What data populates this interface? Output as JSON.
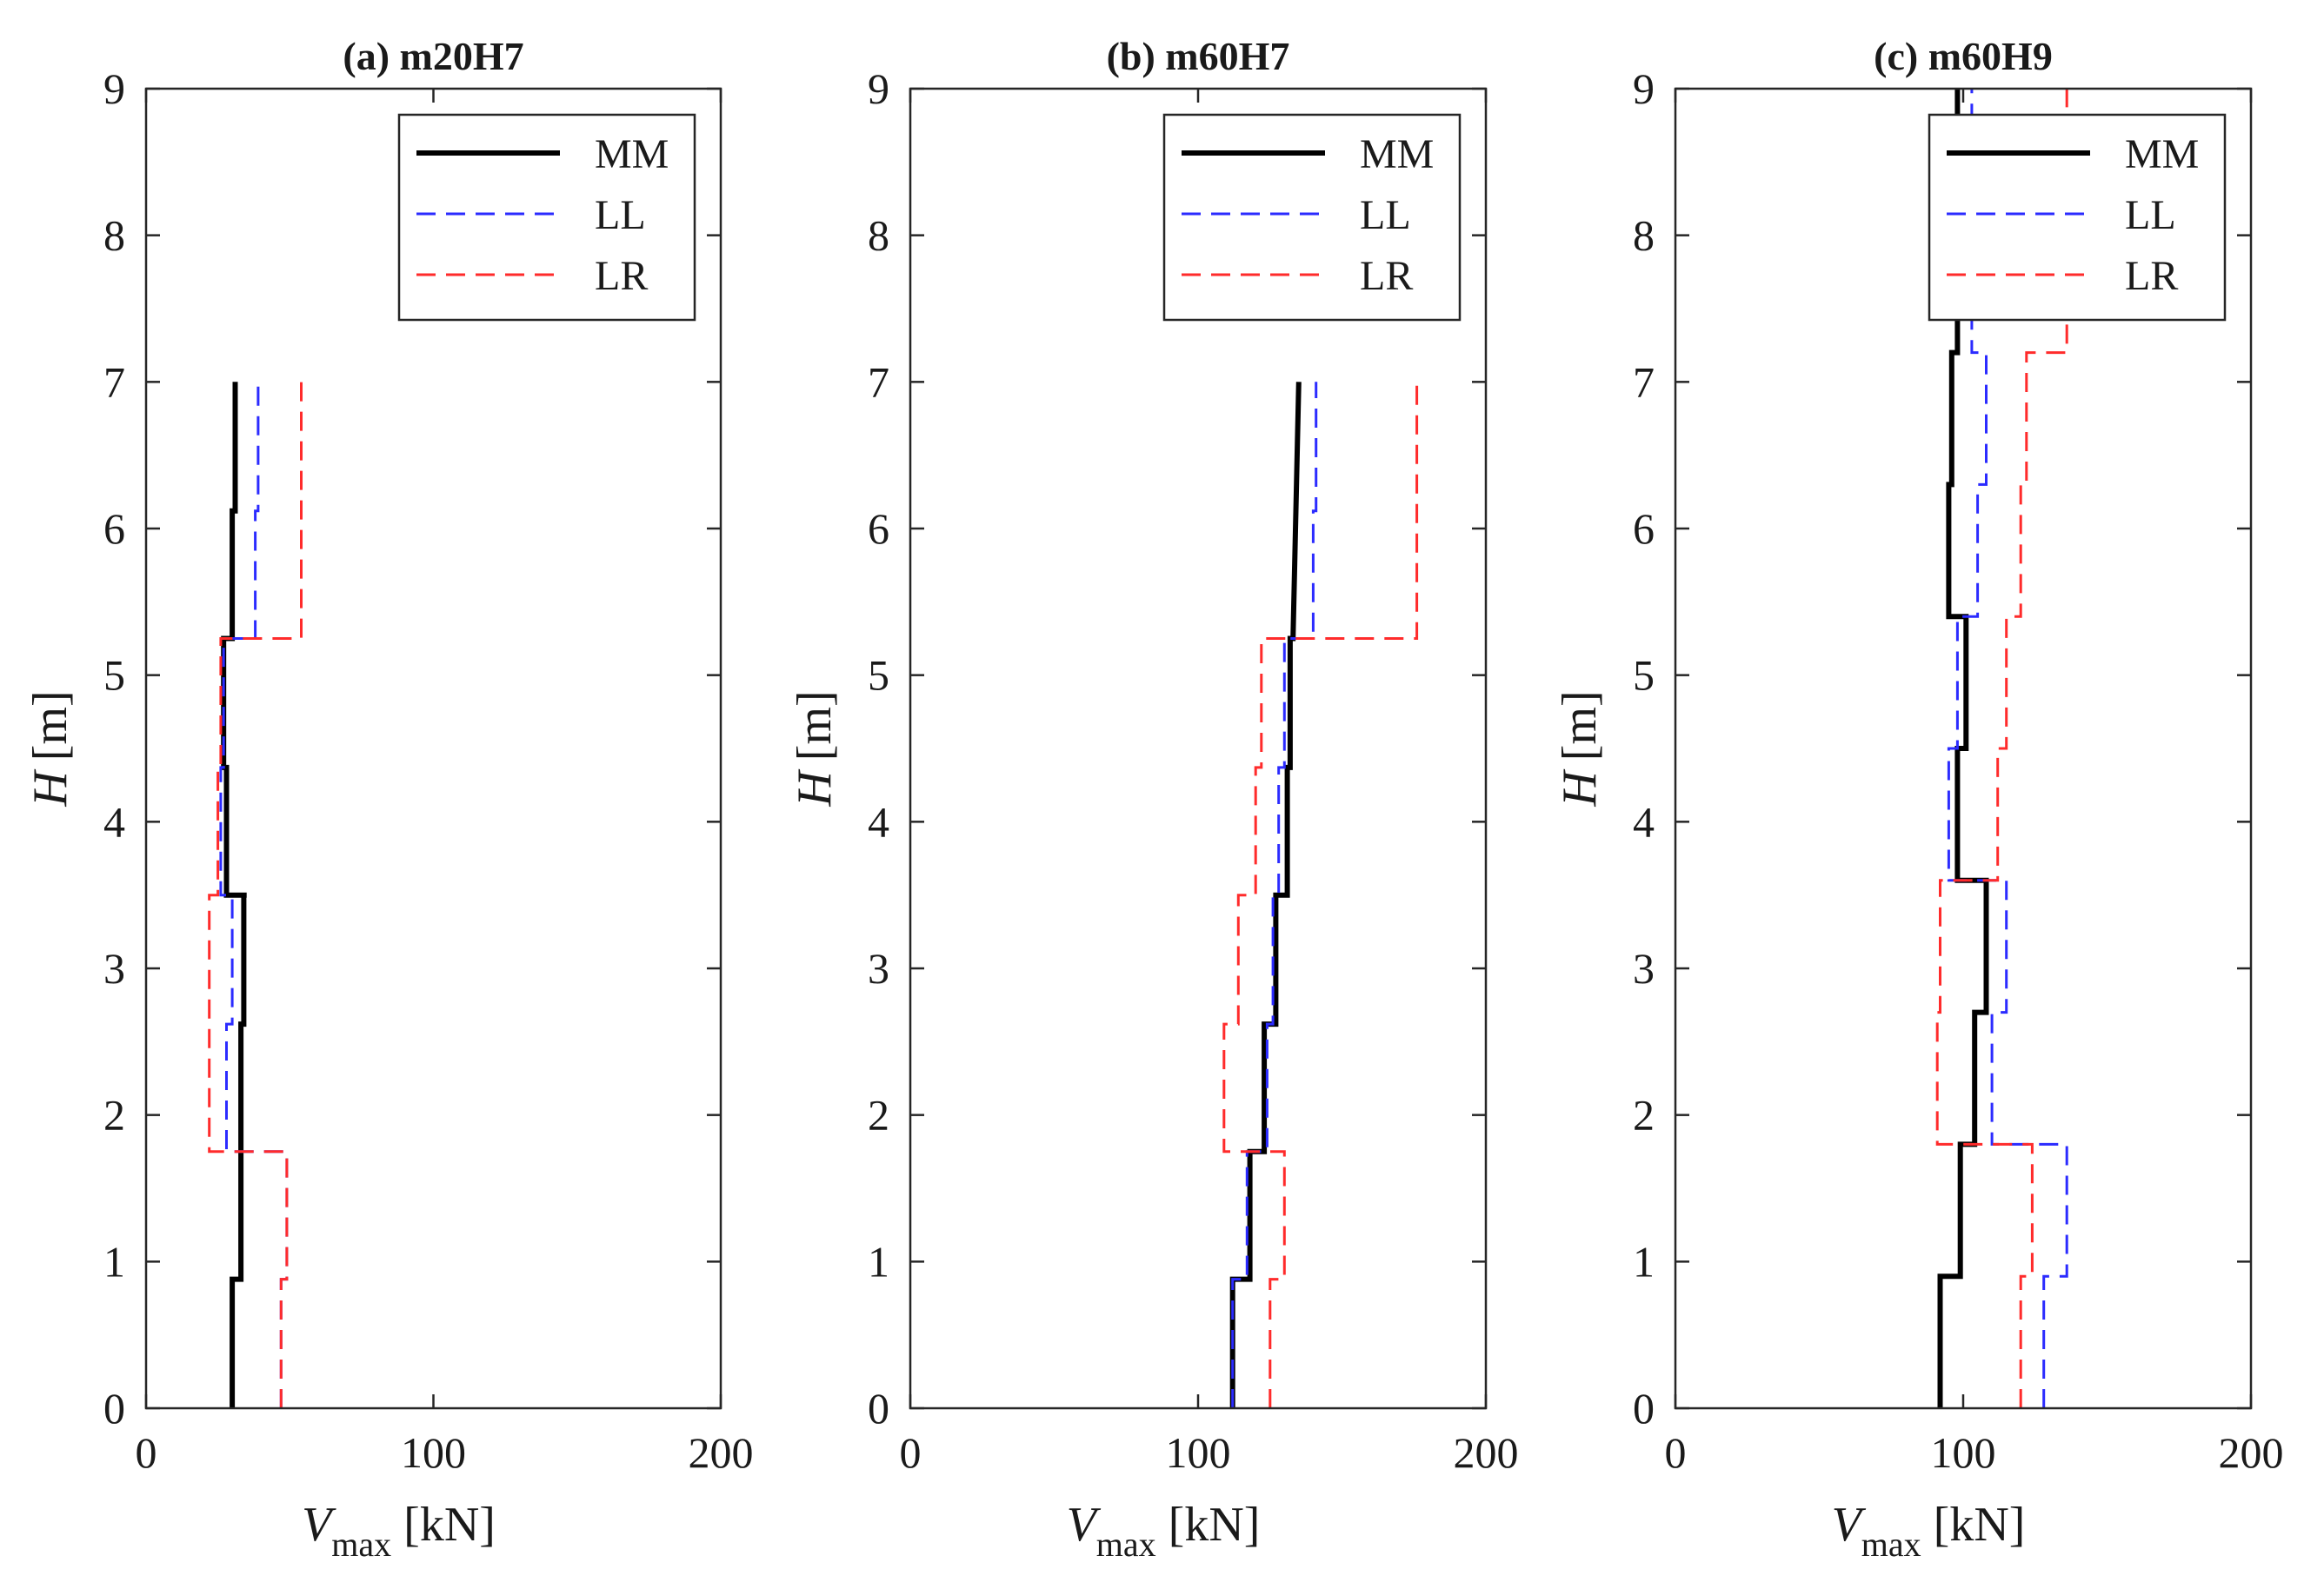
{
  "chart_data": [
    {
      "type": "line",
      "title": "(a) m20H7",
      "xlabel_main": "V",
      "xlabel_sub": "max",
      "xlabel_unit": "[kN]",
      "ylabel_main": "H",
      "ylabel_unit": "[m]",
      "xlim": [
        0,
        200
      ],
      "ylim": [
        0,
        9
      ],
      "xticks": [
        0,
        100,
        200
      ],
      "yticks": [
        0,
        1,
        2,
        3,
        4,
        5,
        6,
        7,
        8,
        9
      ],
      "xtick_labels": [
        "0",
        "100",
        "200"
      ],
      "ytick_labels": [
        "0",
        "1",
        "2",
        "3",
        "4",
        "5",
        "6",
        "7",
        "8",
        "9"
      ],
      "legend": [
        "MM",
        "LL",
        "LR"
      ],
      "series": [
        {
          "name": "MM",
          "color": "#000000",
          "style": "solid",
          "x": [
            30,
            30,
            31,
            33,
            33,
            33,
            33,
            34,
            34,
            35,
            35,
            28,
            28,
            27,
            27,
            29,
            29,
            30,
            30,
            31,
            31
          ],
          "y": [
            0,
            0.88,
            0.88,
            0.88,
            1.75,
            1.75,
            2.62,
            2.62,
            3.5,
            3.5,
            3.5,
            3.5,
            4.37,
            4.37,
            5.25,
            5.25,
            5.25,
            5.25,
            6.12,
            6.12,
            7
          ]
        },
        {
          "name": "LL",
          "color": "#2b2bff",
          "style": "dashed",
          "x": [
            47,
            47,
            49,
            49,
            28,
            28,
            30,
            30,
            26,
            26,
            27,
            27,
            38,
            38,
            39,
            39
          ],
          "y": [
            0,
            0.88,
            0.88,
            1.75,
            1.75,
            2.62,
            2.62,
            3.5,
            3.5,
            4.37,
            4.37,
            5.25,
            5.25,
            6.12,
            6.12,
            7
          ]
        },
        {
          "name": "LR",
          "color": "#ff2b2b",
          "style": "dashed",
          "x": [
            47,
            47,
            49,
            49,
            22,
            22,
            22,
            22,
            25,
            25,
            26,
            26,
            54,
            54,
            54,
            54
          ],
          "y": [
            0,
            0.88,
            0.88,
            1.75,
            1.75,
            2.62,
            2.62,
            3.5,
            3.5,
            4.37,
            4.37,
            5.25,
            5.25,
            6.12,
            6.12,
            7
          ]
        }
      ]
    },
    {
      "type": "line",
      "title": "(b) m60H7",
      "xlabel_main": "V",
      "xlabel_sub": "max",
      "xlabel_unit": "[kN]",
      "ylabel_main": "H",
      "ylabel_unit": "[m]",
      "xlim": [
        0,
        200
      ],
      "ylim": [
        0,
        9
      ],
      "xticks": [
        0,
        100,
        200
      ],
      "yticks": [
        0,
        1,
        2,
        3,
        4,
        5,
        6,
        7,
        8,
        9
      ],
      "xtick_labels": [
        "0",
        "100",
        "200"
      ],
      "ytick_labels": [
        "0",
        "1",
        "2",
        "3",
        "4",
        "5",
        "6",
        "7",
        "8",
        "9"
      ],
      "legend": [
        "MM",
        "LL",
        "LR"
      ],
      "series": [
        {
          "name": "MM",
          "color": "#000000",
          "style": "solid",
          "x": [
            112,
            112,
            118,
            118,
            118,
            118,
            123,
            123,
            123,
            124,
            124,
            127,
            127,
            128,
            128,
            131,
            131,
            132,
            132,
            133,
            133,
            134,
            134,
            135
          ],
          "y": [
            0,
            0.88,
            0.88,
            1.75,
            1.75,
            1.75,
            1.75,
            2.62,
            2.62,
            2.62,
            2.62,
            2.62,
            3.5,
            3.5,
            3.5,
            3.5,
            4.37,
            4.37,
            5.25,
            5.25,
            5.25,
            6.12,
            6.12,
            7
          ]
        },
        {
          "name": "LL",
          "color": "#2b2bff",
          "style": "dashed",
          "x": [
            112,
            112,
            117,
            117,
            124,
            124,
            126,
            126,
            128,
            128,
            130,
            130,
            140,
            140,
            141,
            141
          ],
          "y": [
            0,
            0.88,
            0.88,
            1.75,
            1.75,
            2.62,
            2.62,
            3.5,
            3.5,
            4.37,
            4.37,
            5.25,
            5.25,
            6.12,
            6.12,
            7
          ]
        },
        {
          "name": "LR",
          "color": "#ff2b2b",
          "style": "dashed",
          "x": [
            125,
            125,
            130,
            130,
            109,
            109,
            114,
            114,
            120,
            120,
            122,
            122,
            176,
            176,
            176,
            176
          ],
          "y": [
            0,
            0.88,
            0.88,
            1.75,
            1.75,
            2.62,
            2.62,
            3.5,
            3.5,
            4.37,
            4.37,
            5.25,
            5.25,
            6.12,
            6.12,
            7
          ]
        }
      ]
    },
    {
      "type": "line",
      "title": "(c) m60H9",
      "xlabel_main": "V",
      "xlabel_sub": "max",
      "xlabel_unit": "[kN]",
      "ylabel_main": "H",
      "ylabel_unit": "[m]",
      "xlim": [
        0,
        200
      ],
      "ylim": [
        0,
        9
      ],
      "xticks": [
        0,
        100,
        200
      ],
      "yticks": [
        0,
        1,
        2,
        3,
        4,
        5,
        6,
        7,
        8,
        9
      ],
      "xtick_labels": [
        "0",
        "100",
        "200"
      ],
      "ytick_labels": [
        "0",
        "1",
        "2",
        "3",
        "4",
        "5",
        "6",
        "7",
        "8",
        "9"
      ],
      "legend": [
        "MM",
        "LL",
        "LR"
      ],
      "series": [
        {
          "name": "MM",
          "color": "#000000",
          "style": "solid",
          "x": [
            92,
            92,
            99,
            99,
            104,
            104,
            108,
            108,
            98,
            98,
            101,
            101,
            95,
            95,
            96,
            96,
            98,
            98
          ],
          "y": [
            0,
            0.9,
            0.9,
            1.8,
            1.8,
            2.7,
            2.7,
            3.6,
            3.6,
            4.5,
            4.5,
            5.4,
            5.4,
            6.3,
            6.3,
            7.2,
            7.2,
            9
          ]
        },
        {
          "name": "LL",
          "color": "#2b2bff",
          "style": "dashed",
          "x": [
            128,
            128,
            136,
            136,
            110,
            110,
            115,
            115,
            95,
            95,
            98,
            98,
            105,
            105,
            108,
            108,
            103,
            103
          ],
          "y": [
            0,
            0.9,
            0.9,
            1.8,
            1.8,
            2.7,
            2.7,
            3.6,
            3.6,
            4.5,
            4.5,
            5.4,
            5.4,
            6.3,
            6.3,
            7.2,
            7.2,
            9
          ]
        },
        {
          "name": "LR",
          "color": "#ff2b2b",
          "style": "dashed",
          "x": [
            120,
            120,
            124,
            124,
            91,
            91,
            92,
            92,
            112,
            112,
            115,
            115,
            120,
            120,
            122,
            122,
            136,
            136
          ],
          "y": [
            0,
            0.9,
            0.9,
            1.8,
            1.8,
            2.7,
            2.7,
            3.6,
            3.6,
            4.5,
            4.5,
            5.4,
            5.4,
            6.3,
            6.3,
            7.2,
            7.2,
            9
          ]
        }
      ]
    }
  ]
}
